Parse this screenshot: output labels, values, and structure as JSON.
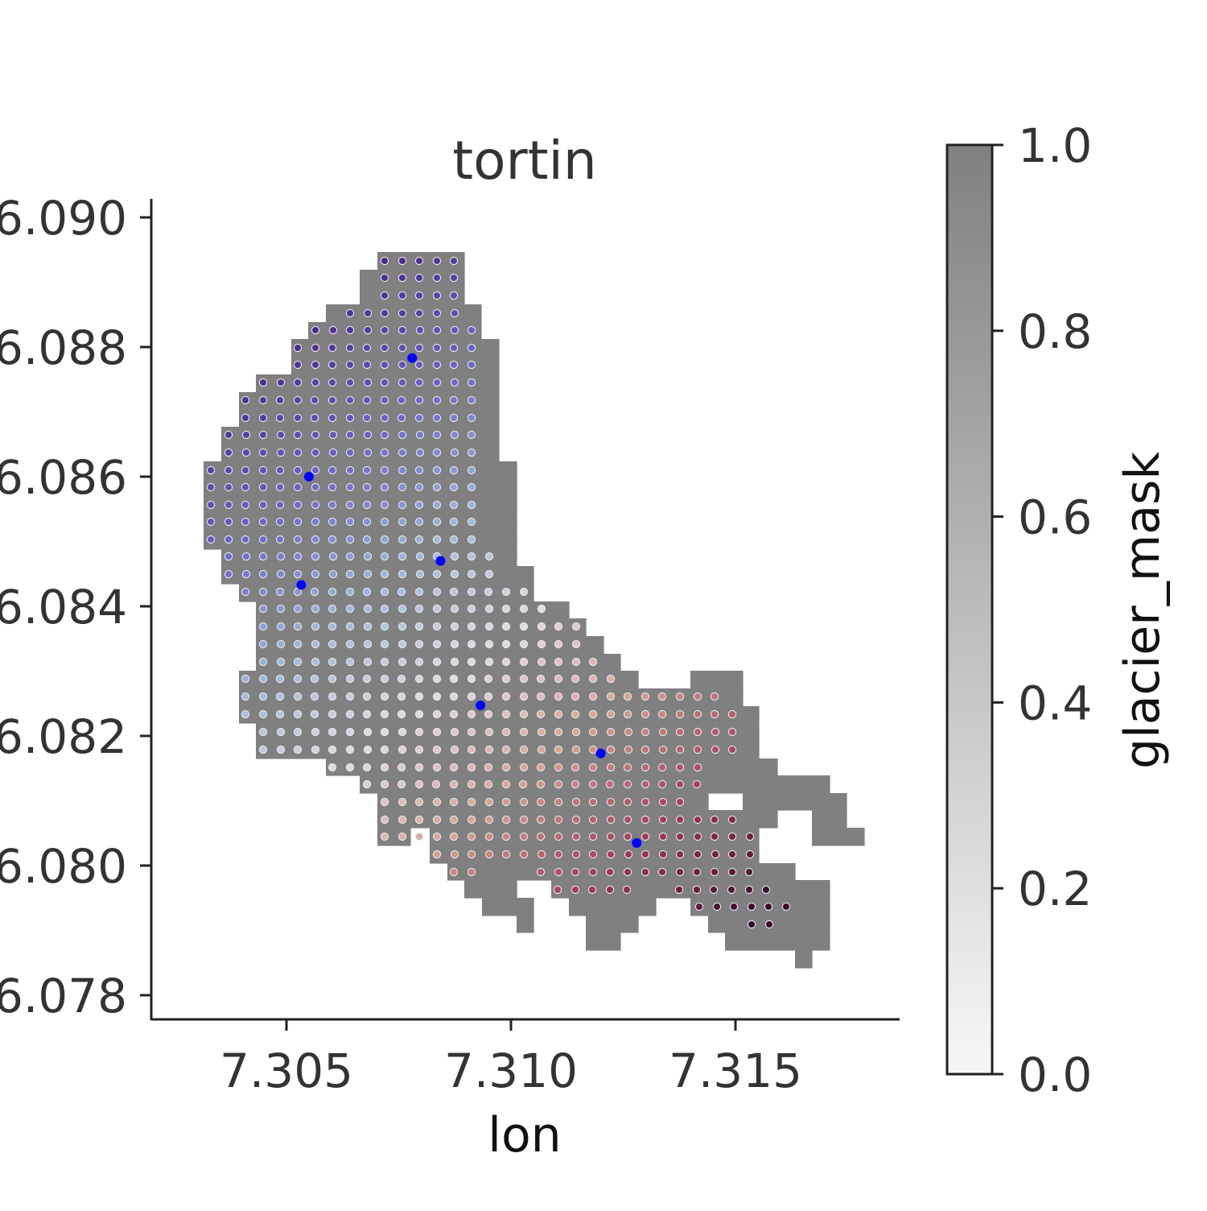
{
  "chart_data": {
    "type": "heatmap",
    "title": "tortin",
    "xlabel": "lon",
    "ylabel": "",
    "xlim": [
      7.302,
      7.3185
    ],
    "ylim": [
      46.0776,
      46.0903
    ],
    "xticks": [
      {
        "value": 7.305,
        "label": "7.305"
      },
      {
        "value": 7.31,
        "label": "7.310"
      },
      {
        "value": 7.315,
        "label": "7.315"
      }
    ],
    "yticks": [
      {
        "value": 46.09,
        "label": "6.090"
      },
      {
        "value": 46.088,
        "label": "6.088"
      },
      {
        "value": 46.086,
        "label": "6.086"
      },
      {
        "value": 46.084,
        "label": "6.084"
      },
      {
        "value": 46.082,
        "label": "6.082"
      },
      {
        "value": 46.08,
        "label": "6.080"
      },
      {
        "value": 46.078,
        "label": "6.078"
      }
    ],
    "mask_color": "#808080",
    "marker_color": "#0000ff",
    "grid": false,
    "colorbar": {
      "label": "glacier_mask",
      "range": [
        0.0,
        1.0
      ],
      "color_low": "#f7f7f7",
      "color_high": "#808080",
      "ticks": [
        {
          "value": 0.0,
          "label": "0.0"
        },
        {
          "value": 0.2,
          "label": "0.2"
        },
        {
          "value": 0.4,
          "label": "0.4"
        },
        {
          "value": 0.6,
          "label": "0.6"
        },
        {
          "value": 0.8,
          "label": "0.8"
        },
        {
          "value": 1.0,
          "label": "1.0"
        }
      ]
    },
    "points_colormap": [
      "#2d0f45",
      "#4b2a8a",
      "#6a66c8",
      "#9fb8d6",
      "#e2dcdf",
      "#d6a493",
      "#a23b55",
      "#3a0a2a"
    ],
    "markers": [
      {
        "lon": 7.3078,
        "lat": 46.08783
      },
      {
        "lon": 7.3055,
        "lat": 46.086
      },
      {
        "lon": 7.30843,
        "lat": 46.0847
      },
      {
        "lon": 7.30533,
        "lat": 46.08433
      },
      {
        "lon": 7.30932,
        "lat": 46.08247
      },
      {
        "lon": 7.312,
        "lat": 46.08173
      },
      {
        "lon": 7.3128,
        "lat": 46.08035
      }
    ]
  }
}
